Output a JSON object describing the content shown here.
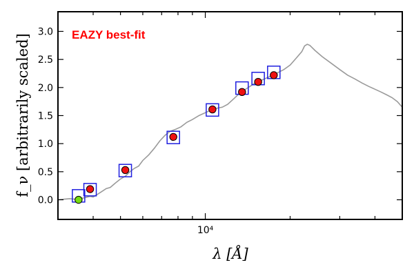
{
  "chart_data": {
    "type": "scatter",
    "x_scale": "log",
    "xlabel": "λ [Å]",
    "ylabel": "f_ν [arbitrarily scaled]",
    "xlim": [
      3000,
      50000
    ],
    "ylim": [
      -0.35,
      3.35
    ],
    "yticks": [
      0.0,
      0.5,
      1.0,
      1.5,
      2.0,
      2.5,
      3.0
    ],
    "ytick_labels": [
      "0.0",
      "0.5",
      "1.0",
      "1.5",
      "2.0",
      "2.5",
      "3.0"
    ],
    "xtick_major": [
      {
        "value": 10000,
        "label": "10⁴"
      }
    ],
    "xtick_minor": [
      4000,
      5000,
      6000,
      7000,
      8000,
      9000,
      20000,
      30000,
      40000
    ],
    "annotation": {
      "text": "EAZY best-fit",
      "color": "#ff0000"
    },
    "colors": {
      "sed_line": "#9a9a9a",
      "model_box": "#1f1fdf",
      "observed_point": "#ee1111",
      "observed_point_alt": "#77dd11",
      "point_edge": "#000000"
    },
    "series": [
      {
        "name": "best-fit SED",
        "style": "line",
        "points": [
          [
            3000,
            0.0
          ],
          [
            3150,
            0.01
          ],
          [
            3300,
            0.02
          ],
          [
            3450,
            0.01
          ],
          [
            3600,
            0.02
          ],
          [
            3750,
            0.04
          ],
          [
            3900,
            0.06
          ],
          [
            4000,
            0.05
          ],
          [
            4150,
            0.1
          ],
          [
            4300,
            0.15
          ],
          [
            4450,
            0.2
          ],
          [
            4600,
            0.22
          ],
          [
            4800,
            0.3
          ],
          [
            5000,
            0.37
          ],
          [
            5200,
            0.42
          ],
          [
            5400,
            0.5
          ],
          [
            5600,
            0.56
          ],
          [
            5800,
            0.6
          ],
          [
            6000,
            0.7
          ],
          [
            6300,
            0.8
          ],
          [
            6600,
            0.92
          ],
          [
            6900,
            1.05
          ],
          [
            7200,
            1.15
          ],
          [
            7500,
            1.22
          ],
          [
            7800,
            1.25
          ],
          [
            8200,
            1.3
          ],
          [
            8600,
            1.38
          ],
          [
            9000,
            1.43
          ],
          [
            9500,
            1.5
          ],
          [
            10000,
            1.55
          ],
          [
            10500,
            1.6
          ],
          [
            11000,
            1.63
          ],
          [
            11500,
            1.65
          ],
          [
            12000,
            1.7
          ],
          [
            12500,
            1.78
          ],
          [
            13000,
            1.86
          ],
          [
            13500,
            1.93
          ],
          [
            14000,
            1.98
          ],
          [
            14500,
            2.03
          ],
          [
            15000,
            2.08
          ],
          [
            16000,
            2.14
          ],
          [
            17000,
            2.2
          ],
          [
            18000,
            2.26
          ],
          [
            19000,
            2.32
          ],
          [
            20000,
            2.4
          ],
          [
            21000,
            2.52
          ],
          [
            22000,
            2.64
          ],
          [
            22500,
            2.74
          ],
          [
            23000,
            2.77
          ],
          [
            23500,
            2.75
          ],
          [
            24500,
            2.66
          ],
          [
            26000,
            2.55
          ],
          [
            28000,
            2.43
          ],
          [
            30000,
            2.32
          ],
          [
            32000,
            2.22
          ],
          [
            34000,
            2.15
          ],
          [
            36000,
            2.08
          ],
          [
            38000,
            2.02
          ],
          [
            40000,
            1.97
          ],
          [
            42000,
            1.92
          ],
          [
            44000,
            1.87
          ],
          [
            46000,
            1.82
          ],
          [
            48000,
            1.75
          ],
          [
            50000,
            1.65
          ]
        ]
      },
      {
        "name": "model photometry",
        "style": "box",
        "points": [
          [
            3550,
            0.07
          ],
          [
            3900,
            0.18
          ],
          [
            5200,
            0.52
          ],
          [
            7700,
            1.11
          ],
          [
            10600,
            1.6
          ],
          [
            13500,
            1.99
          ],
          [
            15400,
            2.16
          ],
          [
            17500,
            2.27
          ]
        ]
      },
      {
        "name": "observed photometry",
        "style": "circle",
        "points": [
          [
            3550,
            0.0
          ],
          [
            3900,
            0.19
          ],
          [
            5200,
            0.53
          ],
          [
            7700,
            1.12
          ],
          [
            10600,
            1.61
          ],
          [
            13500,
            1.92
          ],
          [
            15400,
            2.1
          ],
          [
            17500,
            2.22
          ]
        ]
      }
    ]
  }
}
